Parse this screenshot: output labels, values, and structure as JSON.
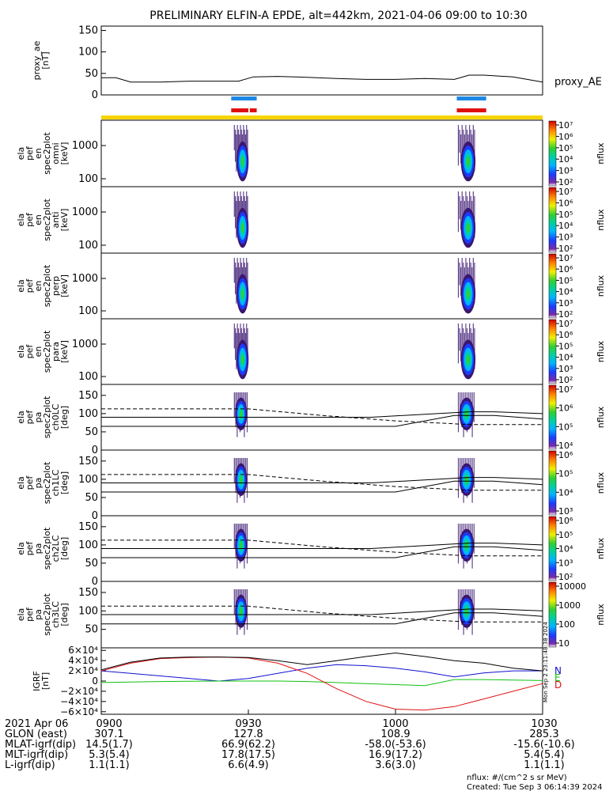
{
  "title": "PRELIMINARY ELFIN-A EPDE, alt=442km, 2021-04-06 09:00 to 10:30",
  "colors": {
    "blue_bar": "#1e88e5",
    "red_bar": "#e01010",
    "yellow_bar": "#f6d400"
  },
  "chart_data": [
    {
      "type": "line",
      "panel": "proxy_ae",
      "ylabel_lines": [
        "proxy_ae",
        "[nT]"
      ],
      "ylim": [
        0,
        160
      ],
      "yticks": [
        "150",
        "100",
        "50",
        "0"
      ],
      "series": [
        {
          "name": "proxy_AE",
          "x": [
            "09:00",
            "09:03",
            "09:06",
            "09:12",
            "09:18",
            "09:24",
            "09:28",
            "09:31",
            "09:36",
            "09:42",
            "09:48",
            "09:54",
            "10:00",
            "10:06",
            "10:12",
            "10:15",
            "10:18",
            "10:24",
            "10:30"
          ],
          "y": [
            40,
            40,
            30,
            30,
            32,
            32,
            32,
            42,
            43,
            41,
            38,
            36,
            36,
            38,
            36,
            46,
            46,
            42,
            30
          ]
        }
      ]
    },
    {
      "type": "heatmap",
      "panel": "energy-omni",
      "ylabel_lines": [
        "ela",
        "pef",
        "en",
        "spec2plot",
        "omni",
        "[keV]"
      ],
      "yticks": [
        "1000",
        "100"
      ],
      "colorbar_label": "nflux",
      "colorbar_ticks": [
        "10⁷",
        "10⁶",
        "10⁵",
        "10⁴",
        "10³",
        "10²"
      ]
    },
    {
      "type": "heatmap",
      "panel": "energy-anti",
      "ylabel_lines": [
        "ela",
        "pef",
        "en",
        "spec2plot",
        "anti",
        "[keV]"
      ],
      "yticks": [
        "1000",
        "100"
      ],
      "colorbar_label": "nflux",
      "colorbar_ticks": [
        "10⁷",
        "10⁶",
        "10⁵",
        "10⁴",
        "10³",
        "10²"
      ]
    },
    {
      "type": "heatmap",
      "panel": "energy-perp",
      "ylabel_lines": [
        "ela",
        "pef",
        "en",
        "spec2plot",
        "perp",
        "[keV]"
      ],
      "yticks": [
        "1000",
        "100"
      ],
      "colorbar_label": "nflux",
      "colorbar_ticks": [
        "10⁷",
        "10⁶",
        "10⁵",
        "10⁴",
        "10³",
        "10²"
      ]
    },
    {
      "type": "heatmap",
      "panel": "energy-para",
      "ylabel_lines": [
        "ela",
        "pef",
        "en",
        "spec2plot",
        "para",
        "[keV]"
      ],
      "yticks": [
        "1000",
        "100"
      ],
      "colorbar_label": "nflux",
      "colorbar_ticks": [
        "10⁷",
        "10⁶",
        "10⁵",
        "10⁴",
        "10³",
        "10²"
      ]
    },
    {
      "type": "heatmap",
      "panel": "pitch-ch0",
      "ylabel_lines": [
        "ela",
        "pef",
        "pa",
        "spec2plot",
        "ch0LC",
        "[deg]"
      ],
      "yticks": [
        "150",
        "100",
        "50",
        "0"
      ],
      "colorbar_label": "nflux",
      "colorbar_ticks": [
        "10⁷",
        "10⁶",
        "10⁵",
        "10⁴"
      ]
    },
    {
      "type": "heatmap",
      "panel": "pitch-ch1",
      "ylabel_lines": [
        "ela",
        "pef",
        "pa",
        "spec2plot",
        "ch1LC",
        "[deg]"
      ],
      "yticks": [
        "150",
        "100",
        "50",
        "0"
      ],
      "colorbar_label": "nflux",
      "colorbar_ticks": [
        "10⁶",
        "10⁵",
        "10⁴",
        "10³"
      ]
    },
    {
      "type": "heatmap",
      "panel": "pitch-ch2",
      "ylabel_lines": [
        "ela",
        "pef",
        "pa",
        "spec2plot",
        "ch2LC",
        "[deg]"
      ],
      "yticks": [
        "150",
        "100",
        "50",
        "0"
      ],
      "colorbar_label": "nflux",
      "colorbar_ticks": [
        "10⁶",
        "10⁵",
        "10⁴",
        "10³",
        "10²"
      ]
    },
    {
      "type": "heatmap",
      "panel": "pitch-ch3",
      "ylabel_lines": [
        "ela",
        "pef",
        "pa",
        "spec2plot",
        "ch3LC",
        "[deg]"
      ],
      "yticks": [
        "150",
        "100",
        "50"
      ],
      "colorbar_label": "nflux",
      "colorbar_ticks": [
        "10000",
        "1000",
        "100",
        "10"
      ]
    },
    {
      "type": "line",
      "panel": "igrf",
      "ylabel_lines": [
        "IGRF",
        "[nT]"
      ],
      "ylim": [
        -65000,
        65000
      ],
      "yticks": [
        "6×10⁴",
        "4×10⁴",
        "2×10⁴",
        "0",
        "−2×10⁴",
        "−4×10⁴",
        "−6×10⁴"
      ],
      "series": [
        {
          "name": "N",
          "x": [
            "09:00",
            "09:06",
            "09:12",
            "09:18",
            "09:24",
            "09:30",
            "09:36",
            "09:42",
            "09:48",
            "09:54",
            "10:00",
            "10:06",
            "10:12",
            "10:18",
            "10:24",
            "10:30"
          ],
          "y": [
            20000,
            15000,
            10000,
            5000,
            0,
            5000,
            15000,
            25000,
            32000,
            30000,
            25000,
            18000,
            8000,
            16000,
            20000,
            20000
          ]
        },
        {
          "name": "E",
          "x": [
            "09:00",
            "09:06",
            "09:12",
            "09:18",
            "09:24",
            "09:30",
            "09:36",
            "09:42",
            "09:48",
            "09:54",
            "10:00",
            "10:06",
            "10:12",
            "10:18",
            "10:24",
            "10:30"
          ],
          "y": [
            -3000,
            -2000,
            -1000,
            -500,
            0,
            0,
            0,
            -1000,
            -3000,
            -5000,
            -7000,
            -9000,
            3000,
            3000,
            2000,
            1000
          ]
        },
        {
          "name": "D",
          "x": [
            "09:00",
            "09:06",
            "09:12",
            "09:18",
            "09:24",
            "09:30",
            "09:36",
            "09:42",
            "09:48",
            "09:54",
            "10:00",
            "10:06",
            "10:12",
            "10:18",
            "10:24",
            "10:30"
          ],
          "y": [
            20000,
            35000,
            44000,
            46000,
            47000,
            45000,
            35000,
            15000,
            -15000,
            -40000,
            -55000,
            -57000,
            -50000,
            -35000,
            -20000,
            -5000
          ]
        },
        {
          "name": "total",
          "x": [
            "09:00",
            "09:06",
            "09:12",
            "09:18",
            "09:24",
            "09:30",
            "09:36",
            "09:42",
            "09:48",
            "09:54",
            "10:00",
            "10:06",
            "10:12",
            "10:18",
            "10:24",
            "10:30"
          ],
          "y": [
            22000,
            37000,
            45000,
            47000,
            47000,
            46000,
            40000,
            32000,
            40000,
            48000,
            55000,
            48000,
            40000,
            35000,
            25000,
            20000
          ]
        }
      ],
      "legend": [
        "N",
        "E",
        "D"
      ]
    }
  ],
  "xaxis": {
    "ticks": [
      "0900",
      "0930",
      "1000",
      "1030"
    ],
    "rows": [
      {
        "label": "2021 Apr 06",
        "values": [
          "0900",
          "0930",
          "1000",
          "1030"
        ]
      },
      {
        "label": "GLON (east)",
        "values": [
          "307.1",
          "127.8",
          "108.9",
          "285.3"
        ]
      },
      {
        "label": "MLAT-igrf(dip)",
        "values": [
          "14.5(1.7)",
          "66.9(62.2)",
          "-58.0(-53.6)",
          "-15.6(-10.6)"
        ]
      },
      {
        "label": "MLT-igrf(dip)",
        "values": [
          "5.3(5.4)",
          "17.8(17.5)",
          "16.9(17.2)",
          "5.4(5.4)"
        ]
      },
      {
        "label": "L-igrf(dip)",
        "values": [
          "1.1(1.1)",
          "6.6(4.9)",
          "3.6(3.0)",
          "1.1(1.1)"
        ]
      }
    ]
  },
  "footer": {
    "units": "nflux: #/(cm^2 s sr MeV)",
    "created": "Created: Tue Sep  3 06:14:39 2024",
    "side_stamp": "Mon Sep  2 23:11:48:38 2024"
  }
}
